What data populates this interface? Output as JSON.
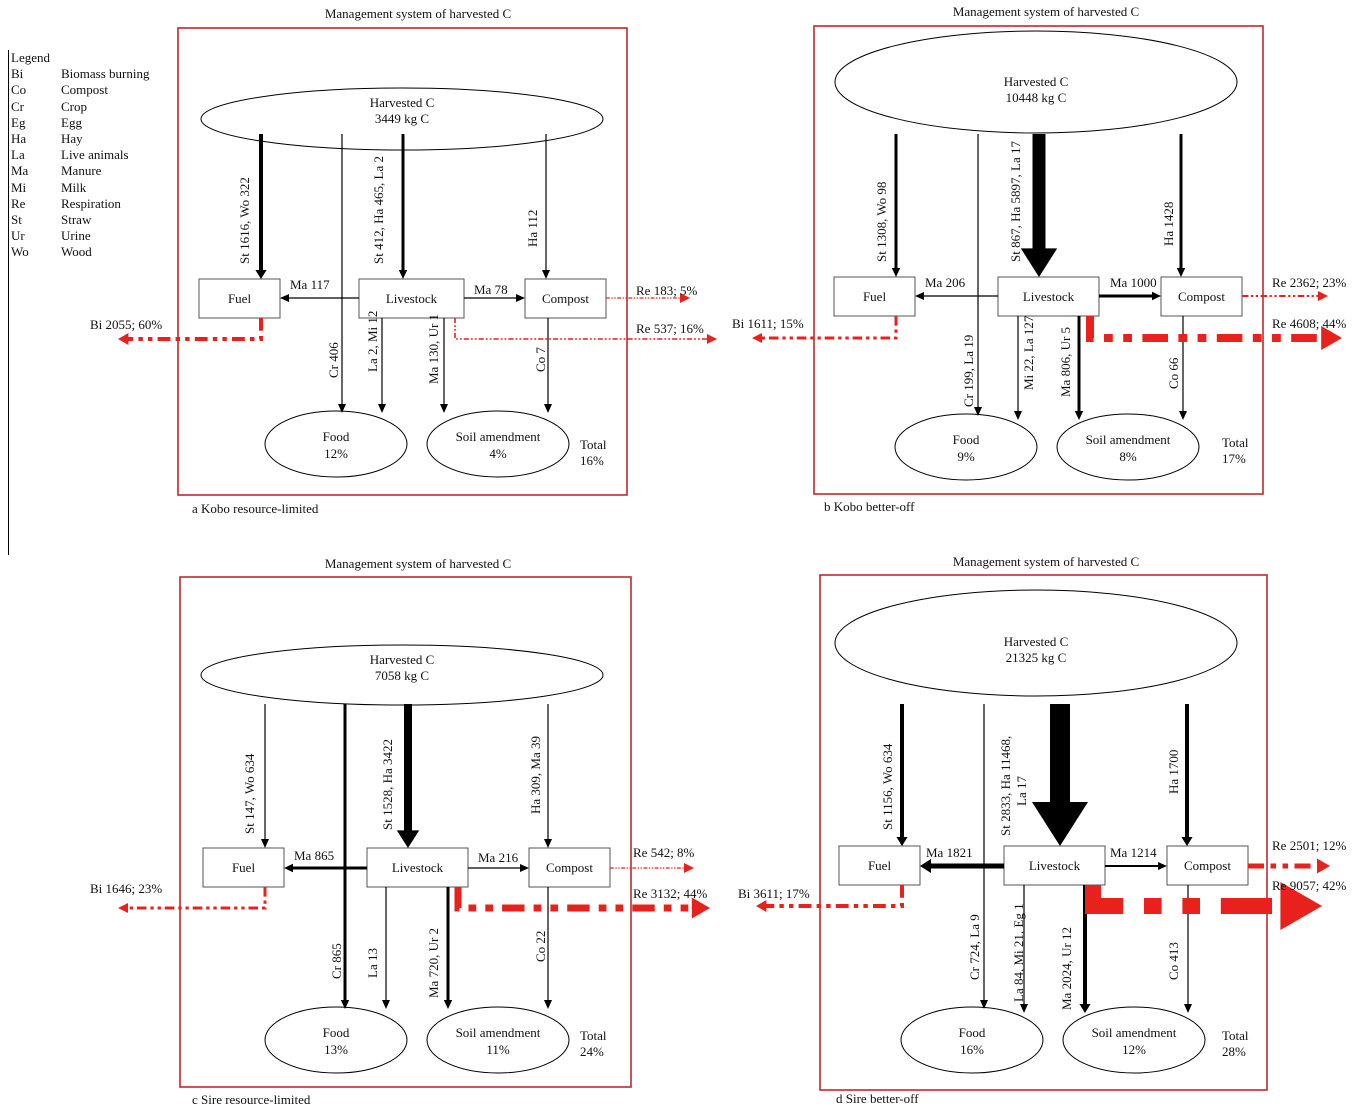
{
  "legend": {
    "title": "Legend",
    "items": [
      {
        "code": "Bi",
        "label": "Biomass burning"
      },
      {
        "code": "Co",
        "label": "Compost"
      },
      {
        "code": "Cr",
        "label": "Crop"
      },
      {
        "code": "Eg",
        "label": "Egg"
      },
      {
        "code": "Ha",
        "label": "Hay"
      },
      {
        "code": "La",
        "label": "Live animals"
      },
      {
        "code": "Ma",
        "label": "Manure"
      },
      {
        "code": "Mi",
        "label": "Milk"
      },
      {
        "code": "Re",
        "label": "Respiration"
      },
      {
        "code": "St",
        "label": "Straw"
      },
      {
        "code": "Ur",
        "label": "Urine"
      },
      {
        "code": "Wo",
        "label": "Wood"
      }
    ]
  },
  "colors": {
    "frame": "#c0282d",
    "red_flow": "#e8211c",
    "black_flow": "#000000"
  },
  "panels": [
    {
      "id": "a",
      "header": "Management system of harvested C",
      "caption": "a Kobo resource-limited",
      "harvested": {
        "label": "Harvested C",
        "amount": "3449 kg C"
      },
      "nodes": {
        "fuel": "Fuel",
        "livestock": "Livestock",
        "compost": "Compost",
        "food": "Food",
        "food_pct": "12%",
        "soil": "Soil amendment",
        "soil_pct": "4%",
        "total_label": "Total",
        "total_pct": "16%"
      },
      "flows": {
        "to_fuel": "St 1616, Wo 322",
        "to_livestock": "St 412, Ha 465, La 2",
        "to_compost": "Ha 112",
        "ma_fuel": "Ma 117",
        "ma_compost": "Ma 78",
        "crop": "Cr 406",
        "liv_food": "La 2, Mi 12",
        "liv_soil": "Ma 130, Ur 1",
        "comp_soil": "Co 7",
        "bi": "Bi 2055; 60%",
        "re_compost": "Re 183; 5%",
        "re_livestock": "Re 537; 16%"
      }
    },
    {
      "id": "b",
      "header": "Management system of harvested C",
      "caption": "b Kobo better-off",
      "harvested": {
        "label": "Harvested C",
        "amount": "10448 kg C"
      },
      "nodes": {
        "fuel": "Fuel",
        "livestock": "Livestock",
        "compost": "Compost",
        "food": "Food",
        "food_pct": "9%",
        "soil": "Soil amendment",
        "soil_pct": "8%",
        "total_label": "Total",
        "total_pct": "17%"
      },
      "flows": {
        "to_fuel": "St 1308, Wo 98",
        "to_livestock": "St 867, Ha 5897, La 17",
        "to_compost": "Ha 1428",
        "ma_fuel": "Ma 206",
        "ma_compost": "Ma 1000",
        "crop": "Cr 199, La 19",
        "liv_food": "Mi 22, La 127",
        "liv_soil": "Ma 806, Ur 5",
        "comp_soil": "Co 66",
        "bi": "Bi 1611; 15%",
        "re_compost": "Re 2362; 23%",
        "re_livestock": "Re 4608; 44%"
      }
    },
    {
      "id": "c",
      "header": "Management system of harvested C",
      "caption": "c Sire resource-limited",
      "harvested": {
        "label": "Harvested C",
        "amount": "7058 kg C"
      },
      "nodes": {
        "fuel": "Fuel",
        "livestock": "Livestock",
        "compost": "Compost",
        "food": "Food",
        "food_pct": "13%",
        "soil": "Soil amendment",
        "soil_pct": "11%",
        "total_label": "Total",
        "total_pct": "24%"
      },
      "flows": {
        "to_fuel": "St 147, Wo 634",
        "to_livestock": "St 1528, Ha 3422",
        "to_compost": "Ha 309, Ma 39",
        "ma_fuel": "Ma 865",
        "ma_compost": "Ma 216",
        "crop": "Cr 865",
        "liv_food": "La 13",
        "liv_soil": "Ma 720, Ur 2",
        "comp_soil": "Co 22",
        "bi": "Bi 1646; 23%",
        "re_compost": "Re 542; 8%",
        "re_livestock": "Re 3132; 44%"
      }
    },
    {
      "id": "d",
      "header": "Management system of harvested C",
      "caption": "d Sire better-off",
      "harvested": {
        "label": "Harvested C",
        "amount": "21325 kg C"
      },
      "nodes": {
        "fuel": "Fuel",
        "livestock": "Livestock",
        "compost": "Compost",
        "food": "Food",
        "food_pct": "16%",
        "soil": "Soil amendment",
        "soil_pct": "12%",
        "total_label": "Total",
        "total_pct": "28%"
      },
      "flows": {
        "to_fuel": "St 1156, Wo 634",
        "to_livestock": "St 2833, Ha 11468,",
        "to_livestock_2": "La 17",
        "to_compost": "Ha 1700",
        "ma_fuel": "Ma 1821",
        "ma_compost": "Ma 1214",
        "crop": "Cr 724, La 9",
        "liv_food": "La 84, Mi 21, Eg 1",
        "liv_soil": "Ma 2024, Ur 12",
        "comp_soil": "Co 413",
        "bi": "Bi 3611; 17%",
        "re_compost": "Re 2501; 12%",
        "re_livestock": "Re 9057; 42%"
      }
    }
  ]
}
